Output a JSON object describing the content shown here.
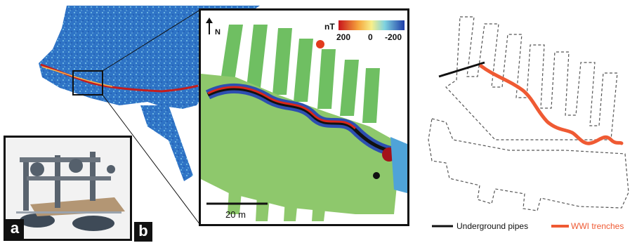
{
  "panels": {
    "a_label": "a",
    "b_label": "b"
  },
  "detail": {
    "north_label": "N",
    "colorbar": {
      "unit": "nT",
      "ticks": [
        "200",
        "0",
        "-200"
      ]
    },
    "scale_bar": "20 m"
  },
  "legend": {
    "items": [
      {
        "label": "Underground pipes",
        "color": "#111111"
      },
      {
        "label": "WWI trenches",
        "color": "#ef5a33"
      }
    ]
  },
  "colors": {
    "map_blue": "#2c6fc2",
    "map_light": "#8ecde6",
    "trench_red": "#ef5a33",
    "high_red": "#a3121a",
    "field_green": "#8ec86c"
  }
}
